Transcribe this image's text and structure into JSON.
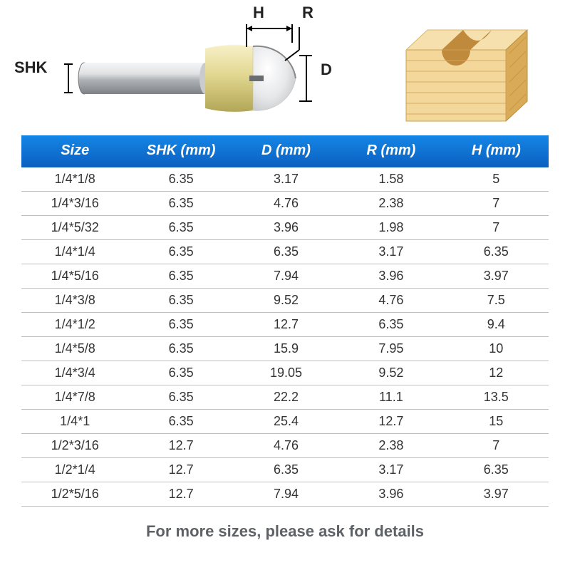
{
  "diagram": {
    "labels": {
      "shk": "SHK",
      "h": "H",
      "r": "R",
      "d": "D"
    },
    "bit_colors": {
      "shank_light": "#e8e9ea",
      "shank_mid": "#b8bcc0",
      "shank_dark": "#8d9195",
      "head_light": "#f5eec0",
      "head_mid": "#d9cf8a",
      "head_dark": "#b7ab5d",
      "tip_light": "#f2f2f2",
      "tip_dark": "#cfd1d3",
      "dim_line": "#000000"
    },
    "wood_colors": {
      "front_light": "#f3d79b",
      "front_dark": "#e7be6f",
      "side": "#d9ab58",
      "top": "#f6e0ad",
      "groove": "#c08a3c",
      "grain": "#d6a85f"
    }
  },
  "table": {
    "header_gradient_from": "#1486e6",
    "header_gradient_to": "#0b5fc0",
    "header_text_color": "#ffffff",
    "row_border_color": "#bfbfbf",
    "cell_text_color": "#333333",
    "cell_fontsize": 18,
    "header_fontsize": 20,
    "columns": [
      "Size",
      "SHK (mm)",
      "D (mm)",
      "R (mm)",
      "H (mm)"
    ],
    "rows": [
      [
        "1/4*1/8",
        "6.35",
        "3.17",
        "1.58",
        "5"
      ],
      [
        "1/4*3/16",
        "6.35",
        "4.76",
        "2.38",
        "7"
      ],
      [
        "1/4*5/32",
        "6.35",
        "3.96",
        "1.98",
        "7"
      ],
      [
        "1/4*1/4",
        "6.35",
        "6.35",
        "3.17",
        "6.35"
      ],
      [
        "1/4*5/16",
        "6.35",
        "7.94",
        "3.96",
        "3.97"
      ],
      [
        "1/4*3/8",
        "6.35",
        "9.52",
        "4.76",
        "7.5"
      ],
      [
        "1/4*1/2",
        "6.35",
        "12.7",
        "6.35",
        "9.4"
      ],
      [
        "1/4*5/8",
        "6.35",
        "15.9",
        "7.95",
        "10"
      ],
      [
        "1/4*3/4",
        "6.35",
        "19.05",
        "9.52",
        "12"
      ],
      [
        "1/4*7/8",
        "6.35",
        "22.2",
        "11.1",
        "13.5"
      ],
      [
        "1/4*1",
        "6.35",
        "25.4",
        "12.7",
        "15"
      ],
      [
        "1/2*3/16",
        "12.7",
        "4.76",
        "2.38",
        "7"
      ],
      [
        "1/2*1/4",
        "12.7",
        "6.35",
        "3.17",
        "6.35"
      ],
      [
        "1/2*5/16",
        "12.7",
        "7.94",
        "3.96",
        "3.97"
      ]
    ]
  },
  "footer": {
    "text": "For more sizes, please ask for details",
    "color": "#5e6266",
    "fontsize": 22
  }
}
